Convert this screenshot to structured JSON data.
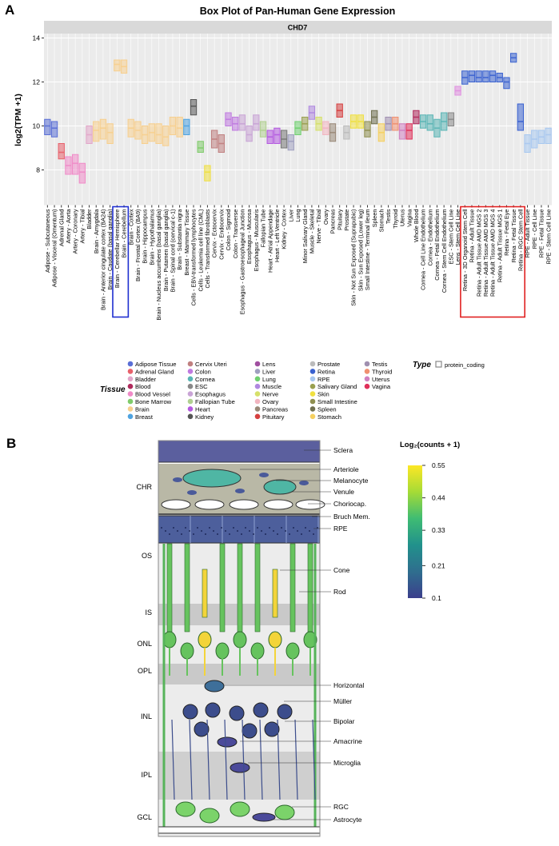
{
  "panel_a": {
    "letter": "A",
    "chart_data": {
      "type": "box",
      "title": "Box Plot of Pan-Human Gene Expression",
      "facet": "CHD7",
      "y_label": "log2(TPM +1)",
      "categories": [
        "Adipose - Subcutaneous",
        "Adipose - Visceral (Omentum)",
        "Adrenal Gland",
        "Artery - Aorta",
        "Artery - Coronary",
        "Artery - Tibial",
        "Bladder",
        "Brain - Amygdala",
        "Brain - Anterior cingulate cortex (BA24)",
        "Brain - Caudate (basal ganglia)",
        "Brain - Cerebellar Hemisphere",
        "Brain - Cerebellum",
        "Brain - Cortex",
        "Brain - Frontal Cortex (BA9)",
        "Brain - Hippocampus",
        "Brain - Hypothalamus",
        "Brain - Nucleus accumbens (basal ganglia)",
        "Brain - Putamen (basal ganglia)",
        "Brain - Spinal cord (cervical c-1)",
        "Brain - Substantia nigra",
        "Breast - Mammary Tissue",
        "Cells - EBV-transformed lymphocytes",
        "Cells - Leukemia cell line (CML)",
        "Cells - Transformed fibroblasts",
        "Cervix - Ectocervix",
        "Cervix - Endocervix",
        "Colon - Sigmoid",
        "Colon - Transverse",
        "Esophagus - Gastroesophageal Junction",
        "Esophagus - Mucosa",
        "Esophagus - Muscularis",
        "Fallopian Tube",
        "Heart - Atrial Appendage",
        "Heart - Left Ventricle",
        "Kidney - Cortex",
        "Liver",
        "Lung",
        "Minor Salivary Gland",
        "Muscle - Skeletal",
        "Nerve - Tibial",
        "Ovary",
        "Pancreas",
        "Pituitary",
        "Prostate",
        "Skin - Not Sun Exposed (Suprapubic)",
        "Skin - Sun Exposed (Lower leg)",
        "Small Intestine - Terminal Ileum",
        "Spleen",
        "Stomach",
        "Testis",
        "Thyroid",
        "Uterus",
        "Vagina",
        "Whole Blood",
        "Cornea - Cell Line Endothelium",
        "Cornea - Endothelium",
        "Cornea - Fetal Endothelium",
        "Cornea - Stem Cell Endothelium",
        "ESC - Stem Cell Line",
        "Lens - Stem Cell Line",
        "Retina - 3D Organoid Stem Cell",
        "Retina - Adult Tissue",
        "Retina - Adult Tissue AMD MGS 2",
        "Retina - Adult Tissue AMD MGS 3",
        "Retina - Adult Tissue AMD MGS 4",
        "Retina - Adult Tissue MGS 1",
        "Retina - Fetal Eye",
        "Retina - Fetal Tissue",
        "Retina - RGC Stem Cell",
        "RPE - Adult Tissue",
        "RPE - Cell Line",
        "RPE - Fetal Tissue",
        "RPE - Stem Cell Line"
      ],
      "q1": [
        9.6,
        9.5,
        8.5,
        7.8,
        7.8,
        7.4,
        9.2,
        9.3,
        9.4,
        9.2,
        12.5,
        12.4,
        9.5,
        9.4,
        9.2,
        9.3,
        9.2,
        9.1,
        9.6,
        9.5,
        9.6,
        10.5,
        8.8,
        7.5,
        9.0,
        8.8,
        10.0,
        9.8,
        9.8,
        9.3,
        9.8,
        9.5,
        9.2,
        9.2,
        9.0,
        8.9,
        9.6,
        9.8,
        10.3,
        9.8,
        9.6,
        9.3,
        10.4,
        9.4,
        9.9,
        9.9,
        9.5,
        10.1,
        9.3,
        9.8,
        9.8,
        9.4,
        9.4,
        10.1,
        9.9,
        9.8,
        9.5,
        9.8,
        10.0,
        11.4,
        11.9,
        12.0,
        12.0,
        12.0,
        12.0,
        12.0,
        11.7,
        12.9,
        9.8,
        8.8,
        9.0,
        9.2,
        9.2
      ],
      "median": [
        10.0,
        9.9,
        8.8,
        8.2,
        8.3,
        7.9,
        9.6,
        9.8,
        9.9,
        9.7,
        12.8,
        12.7,
        9.9,
        9.8,
        9.6,
        9.7,
        9.6,
        9.5,
        10.0,
        9.9,
        10.0,
        10.9,
        9.0,
        7.9,
        9.4,
        9.2,
        10.3,
        10.1,
        10.1,
        9.6,
        10.1,
        9.8,
        9.5,
        9.6,
        9.4,
        9.3,
        9.9,
        10.1,
        10.6,
        10.1,
        9.9,
        9.7,
        10.7,
        9.7,
        10.2,
        10.2,
        9.8,
        10.4,
        9.7,
        10.1,
        10.1,
        9.8,
        9.8,
        10.4,
        10.2,
        10.1,
        9.9,
        10.2,
        10.3,
        11.6,
        12.2,
        12.3,
        12.2,
        12.2,
        12.3,
        12.2,
        12.0,
        13.1,
        10.2,
        9.2,
        9.4,
        9.5,
        9.6
      ],
      "q3": [
        10.3,
        10.2,
        9.2,
        8.6,
        8.7,
        8.3,
        10.0,
        10.2,
        10.3,
        10.1,
        13.0,
        13.0,
        10.3,
        10.2,
        10.0,
        10.1,
        10.1,
        10.0,
        10.4,
        10.4,
        10.3,
        11.2,
        9.3,
        8.2,
        9.8,
        9.6,
        10.6,
        10.4,
        10.5,
        10.0,
        10.5,
        10.2,
        9.8,
        9.9,
        9.8,
        9.6,
        10.2,
        10.4,
        10.9,
        10.4,
        10.2,
        10.1,
        11.0,
        10.0,
        10.5,
        10.5,
        10.2,
        10.7,
        10.1,
        10.4,
        10.4,
        10.1,
        10.1,
        10.7,
        10.5,
        10.5,
        10.3,
        10.6,
        10.6,
        11.8,
        12.5,
        12.5,
        12.5,
        12.5,
        12.5,
        12.4,
        12.2,
        13.3,
        11.0,
        9.6,
        9.8,
        9.8,
        9.9
      ],
      "colors": [
        "#5a6fd6",
        "#5a6fd6",
        "#e8616b",
        "#f08bc8",
        "#f08bc8",
        "#f08bc8",
        "#e2a6c9",
        "#f7cf8e",
        "#f7cf8e",
        "#f7cf8e",
        "#f7cf8e",
        "#f7cf8e",
        "#f7cf8e",
        "#f7cf8e",
        "#f7cf8e",
        "#f7cf8e",
        "#f7cf8e",
        "#f7cf8e",
        "#f7cf8e",
        "#f7cf8e",
        "#4fa3e0",
        "#555555",
        "#7fcb6a",
        "#f0e040",
        "#c08080",
        "#c08080",
        "#c07ae0",
        "#c07ae0",
        "#c9a4d6",
        "#c9a4d6",
        "#c9a4d6",
        "#b0d090",
        "#b45ae0",
        "#b45ae0",
        "#777777",
        "#a0a0c0",
        "#6fd06f",
        "#9aa050",
        "#b088e0",
        "#d6e06a",
        "#f2b5c0",
        "#998877",
        "#d64040",
        "#bbbbbb",
        "#f0e040",
        "#f0e040",
        "#8f8f50",
        "#707050",
        "#f5d060",
        "#a090b0",
        "#f09070",
        "#d080c0",
        "#e0305a",
        "#b02a5c",
        "#5ab5b5",
        "#5ab5b5",
        "#5ab5b5",
        "#5ab5b5",
        "#888888",
        "#e090e0",
        "#3a62d0",
        "#3a62d0",
        "#3a62d0",
        "#3a62d0",
        "#3a62d0",
        "#3a62d0",
        "#3a62d0",
        "#3a62d0",
        "#3a62d0",
        "#a8c8f0",
        "#a8c8f0",
        "#a8c8f0",
        "#a8c8f0"
      ],
      "ylim": [
        6.4,
        14.2
      ],
      "yticks": [
        8,
        10,
        12,
        14
      ],
      "grid": true,
      "legend": {
        "title": "Tissue",
        "entries": [
          {
            "name": "Adipose Tissue",
            "color": "#5a6fd6"
          },
          {
            "name": "Adrenal Gland",
            "color": "#e8616b"
          },
          {
            "name": "Bladder",
            "color": "#e2a6c9"
          },
          {
            "name": "Blood",
            "color": "#b02a5c"
          },
          {
            "name": "Blood Vessel",
            "color": "#f08bc8"
          },
          {
            "name": "Bone Marrow",
            "color": "#7fcb6a"
          },
          {
            "name": "Brain",
            "color": "#f7cf8e"
          },
          {
            "name": "Breast",
            "color": "#4fa3e0"
          },
          {
            "name": "Cervix Uteri",
            "color": "#c08080"
          },
          {
            "name": "Colon",
            "color": "#c07ae0"
          },
          {
            "name": "Cornea",
            "color": "#5ab5b5"
          },
          {
            "name": "ESC",
            "color": "#888888"
          },
          {
            "name": "Esophagus",
            "color": "#c9a4d6"
          },
          {
            "name": "Fallopian Tube",
            "color": "#b0d090"
          },
          {
            "name": "Heart",
            "color": "#b45ae0"
          },
          {
            "name": "Kidney",
            "color": "#555555"
          },
          {
            "name": "Lens",
            "color": "#a04fa0"
          },
          {
            "name": "Liver",
            "color": "#a0a0c0"
          },
          {
            "name": "Lung",
            "color": "#6fd06f"
          },
          {
            "name": "Muscle",
            "color": "#b088e0"
          },
          {
            "name": "Nerve",
            "color": "#d6e06a"
          },
          {
            "name": "Ovary",
            "color": "#f2b5c0"
          },
          {
            "name": "Pancreas",
            "color": "#998877"
          },
          {
            "name": "Pituitary",
            "color": "#d64040"
          },
          {
            "name": "Prostate",
            "color": "#bbbbbb"
          },
          {
            "name": "Retina",
            "color": "#3a62d0"
          },
          {
            "name": "RPE",
            "color": "#a8c8f0"
          },
          {
            "name": "Salivary Gland",
            "color": "#9aa050"
          },
          {
            "name": "Skin",
            "color": "#f0e040"
          },
          {
            "name": "Small Intestine",
            "color": "#8f8f50"
          },
          {
            "name": "Spleen",
            "color": "#707050"
          },
          {
            "name": "Stomach",
            "color": "#f5d060"
          },
          {
            "name": "Testis",
            "color": "#a090b0"
          },
          {
            "name": "Thyroid",
            "color": "#f09070"
          },
          {
            "name": "Uterus",
            "color": "#d080c0"
          },
          {
            "name": "Vagina",
            "color": "#e0305a"
          }
        ]
      },
      "type_legend": {
        "title": "Type",
        "entries": [
          "protein_coding"
        ]
      }
    }
  },
  "panel_b": {
    "letter": "B",
    "layers": [
      "CHR",
      "OS",
      "IS",
      "ONL",
      "OPL",
      "INL",
      "IPL",
      "GCL"
    ],
    "labels": [
      "Sclera",
      "Arteriole",
      "Melanocyte",
      "Venule",
      "Choriocap.",
      "Bruch Mem.",
      "RPE",
      "Cone",
      "Rod",
      "Horizontal",
      "Müller",
      "Bipolar",
      "Amacrine",
      "Microglia",
      "RGC",
      "Astrocyte"
    ],
    "colorbar": {
      "title": "Log₂(counts + 1)",
      "lim": [
        0.1,
        0.55
      ],
      "ticks": [
        0.1,
        0.21,
        0.33,
        0.44,
        0.55
      ],
      "colors": [
        "#3b3f8c",
        "#2f6e8e",
        "#21918c",
        "#3fbc73",
        "#a5db36",
        "#fde725"
      ]
    }
  }
}
